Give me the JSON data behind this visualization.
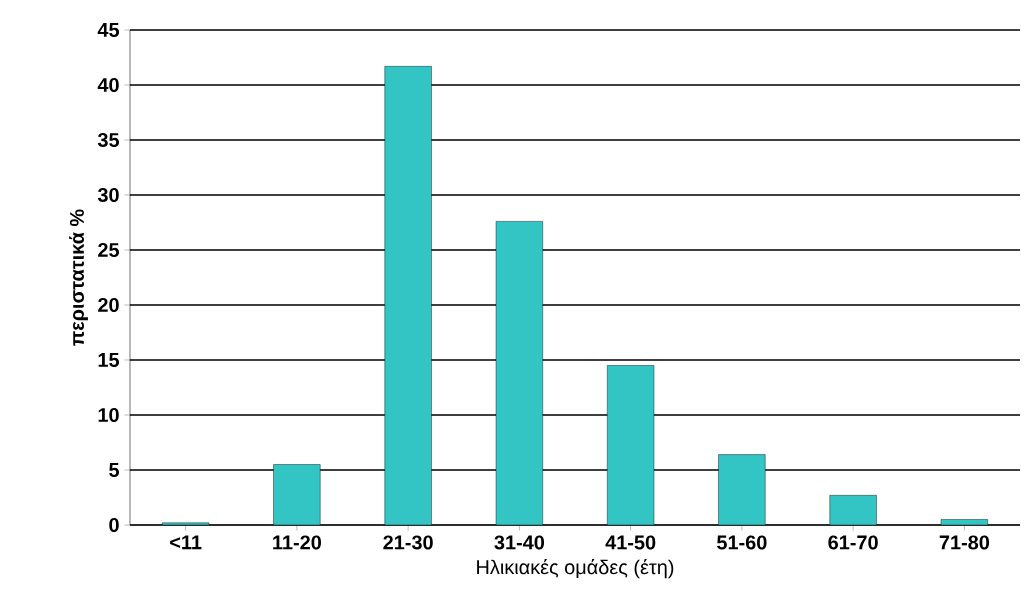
{
  "chart_data": {
    "type": "bar",
    "xlabel": "Ηλικιακές ομάδες (έτη)",
    "ylabel": "περιστατικά %",
    "categories": [
      "<11",
      "11-20",
      "21-30",
      "31-40",
      "41-50",
      "51-60",
      "61-70",
      "71-80"
    ],
    "values": [
      0.2,
      5.5,
      41.7,
      27.6,
      14.5,
      6.4,
      2.7,
      0.5
    ],
    "color": "#33c4c4",
    "ylim": [
      0,
      45
    ],
    "yticks": [
      0,
      5,
      10,
      15,
      20,
      25,
      30,
      35,
      40,
      45
    ],
    "grid": "y"
  }
}
